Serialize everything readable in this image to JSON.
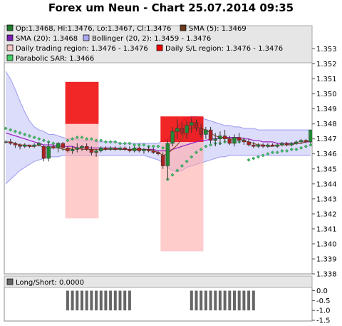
{
  "chart_data": [
    {
      "type": "candlestick",
      "title": "Forex um Neun - Chart 25.07.2014 09:35",
      "ylim": [
        1.338,
        1.3535
      ],
      "yticks": [
        "1.353",
        "1.352",
        "1.351",
        "1.350",
        "1.349",
        "1.348",
        "1.347",
        "1.346",
        "1.345",
        "1.344",
        "1.343",
        "1.342",
        "1.341",
        "1.340",
        "1.339",
        "1.338"
      ],
      "legend": [
        {
          "label": "Op:1.3468, Hi:1.3476, Lo:1.3467, Cl:1.3476",
          "color": "#1f7a2e"
        },
        {
          "label": "SMA (5): 1.3469",
          "color": "#6b3a1e"
        },
        {
          "label": "SMA (20): 1.3468",
          "color": "#7a1fb0"
        },
        {
          "label": "Bollinger (20, 2): 1.3459 - 1.3476",
          "color": "#a9a9f2"
        },
        {
          "label": "Daily trading region: 1.3476 - 1.3476",
          "color": "#f7c3c3"
        },
        {
          "label": "Daily S/L region: 1.3476 - 1.3476",
          "color": "#ee0000"
        },
        {
          "label": "Parabolic SAR: 1.3466",
          "color": "#44cc66"
        }
      ],
      "candles": [
        {
          "o": 1.3468,
          "h": 1.3469,
          "l": 1.3467,
          "c": 1.3468
        },
        {
          "o": 1.3468,
          "h": 1.347,
          "l": 1.3466,
          "c": 1.3467
        },
        {
          "o": 1.3467,
          "h": 1.3468,
          "l": 1.3464,
          "c": 1.3466
        },
        {
          "o": 1.3466,
          "h": 1.3467,
          "l": 1.3463,
          "c": 1.3465
        },
        {
          "o": 1.3465,
          "h": 1.3467,
          "l": 1.3464,
          "c": 1.3466
        },
        {
          "o": 1.3466,
          "h": 1.3466,
          "l": 1.3464,
          "c": 1.3465
        },
        {
          "o": 1.3465,
          "h": 1.3467,
          "l": 1.3464,
          "c": 1.3466
        },
        {
          "o": 1.3466,
          "h": 1.3468,
          "l": 1.3465,
          "c": 1.3467
        },
        {
          "o": 1.3465,
          "h": 1.3466,
          "l": 1.3455,
          "c": 1.3457
        },
        {
          "o": 1.3457,
          "h": 1.3468,
          "l": 1.3455,
          "c": 1.3465
        },
        {
          "o": 1.3465,
          "h": 1.3466,
          "l": 1.3463,
          "c": 1.3464
        },
        {
          "o": 1.3464,
          "h": 1.3468,
          "l": 1.3461,
          "c": 1.3467
        },
        {
          "o": 1.3467,
          "h": 1.3468,
          "l": 1.3462,
          "c": 1.3464
        },
        {
          "o": 1.3464,
          "h": 1.3465,
          "l": 1.3461,
          "c": 1.3462
        },
        {
          "o": 1.3462,
          "h": 1.3465,
          "l": 1.346,
          "c": 1.3463
        },
        {
          "o": 1.3463,
          "h": 1.3467,
          "l": 1.3461,
          "c": 1.3464
        },
        {
          "o": 1.3464,
          "h": 1.3466,
          "l": 1.3462,
          "c": 1.3465
        },
        {
          "o": 1.3465,
          "h": 1.3467,
          "l": 1.3462,
          "c": 1.3463
        },
        {
          "o": 1.3463,
          "h": 1.3465,
          "l": 1.3459,
          "c": 1.3461
        },
        {
          "o": 1.3461,
          "h": 1.3463,
          "l": 1.3458,
          "c": 1.3462
        },
        {
          "o": 1.3462,
          "h": 1.3465,
          "l": 1.3461,
          "c": 1.3464
        },
        {
          "o": 1.3464,
          "h": 1.3465,
          "l": 1.3462,
          "c": 1.3463
        },
        {
          "o": 1.3463,
          "h": 1.3465,
          "l": 1.3462,
          "c": 1.3464
        },
        {
          "o": 1.3464,
          "h": 1.3465,
          "l": 1.3462,
          "c": 1.3463
        },
        {
          "o": 1.3463,
          "h": 1.3465,
          "l": 1.3462,
          "c": 1.3464
        },
        {
          "o": 1.3464,
          "h": 1.3465,
          "l": 1.3462,
          "c": 1.3463
        },
        {
          "o": 1.3463,
          "h": 1.3465,
          "l": 1.3461,
          "c": 1.3462
        },
        {
          "o": 1.3462,
          "h": 1.3465,
          "l": 1.3461,
          "c": 1.3464
        },
        {
          "o": 1.3464,
          "h": 1.3465,
          "l": 1.3461,
          "c": 1.3462
        },
        {
          "o": 1.3462,
          "h": 1.3464,
          "l": 1.346,
          "c": 1.3463
        },
        {
          "o": 1.3463,
          "h": 1.3465,
          "l": 1.3461,
          "c": 1.3462
        },
        {
          "o": 1.3462,
          "h": 1.3464,
          "l": 1.346,
          "c": 1.3461
        },
        {
          "o": 1.3461,
          "h": 1.3462,
          "l": 1.3459,
          "c": 1.346
        },
        {
          "o": 1.3459,
          "h": 1.3461,
          "l": 1.345,
          "c": 1.3452
        },
        {
          "o": 1.3452,
          "h": 1.3469,
          "l": 1.3443,
          "c": 1.3467
        },
        {
          "o": 1.3467,
          "h": 1.3478,
          "l": 1.3465,
          "c": 1.3475
        },
        {
          "o": 1.3475,
          "h": 1.3483,
          "l": 1.347,
          "c": 1.3477
        },
        {
          "o": 1.3477,
          "h": 1.3481,
          "l": 1.3472,
          "c": 1.3474
        },
        {
          "o": 1.3474,
          "h": 1.3482,
          "l": 1.347,
          "c": 1.3479
        },
        {
          "o": 1.3479,
          "h": 1.3484,
          "l": 1.3474,
          "c": 1.3481
        },
        {
          "o": 1.3481,
          "h": 1.3483,
          "l": 1.3475,
          "c": 1.3477
        },
        {
          "o": 1.3477,
          "h": 1.348,
          "l": 1.3471,
          "c": 1.3473
        },
        {
          "o": 1.3473,
          "h": 1.3478,
          "l": 1.347,
          "c": 1.3476
        },
        {
          "o": 1.3476,
          "h": 1.3478,
          "l": 1.3467,
          "c": 1.3469
        },
        {
          "o": 1.3469,
          "h": 1.3474,
          "l": 1.3465,
          "c": 1.347
        },
        {
          "o": 1.347,
          "h": 1.3475,
          "l": 1.3466,
          "c": 1.3472
        },
        {
          "o": 1.3472,
          "h": 1.3476,
          "l": 1.3468,
          "c": 1.347
        },
        {
          "o": 1.347,
          "h": 1.3472,
          "l": 1.3466,
          "c": 1.3467
        },
        {
          "o": 1.3467,
          "h": 1.3473,
          "l": 1.3465,
          "c": 1.3471
        },
        {
          "o": 1.3471,
          "h": 1.3474,
          "l": 1.3467,
          "c": 1.3469
        },
        {
          "o": 1.3469,
          "h": 1.3471,
          "l": 1.3466,
          "c": 1.3468
        },
        {
          "o": 1.3468,
          "h": 1.347,
          "l": 1.3465,
          "c": 1.3466
        },
        {
          "o": 1.3466,
          "h": 1.3468,
          "l": 1.3464,
          "c": 1.3465
        },
        {
          "o": 1.3465,
          "h": 1.3467,
          "l": 1.3464,
          "c": 1.3466
        },
        {
          "o": 1.3466,
          "h": 1.3467,
          "l": 1.3464,
          "c": 1.3465
        },
        {
          "o": 1.3465,
          "h": 1.3467,
          "l": 1.3464,
          "c": 1.3466
        },
        {
          "o": 1.3466,
          "h": 1.3467,
          "l": 1.3465,
          "c": 1.3465
        },
        {
          "o": 1.3465,
          "h": 1.3467,
          "l": 1.3464,
          "c": 1.3466
        },
        {
          "o": 1.3466,
          "h": 1.3468,
          "l": 1.3465,
          "c": 1.3467
        },
        {
          "o": 1.3467,
          "h": 1.3468,
          "l": 1.3465,
          "c": 1.3466
        },
        {
          "o": 1.3466,
          "h": 1.3468,
          "l": 1.3465,
          "c": 1.3467
        },
        {
          "o": 1.3467,
          "h": 1.3469,
          "l": 1.3466,
          "c": 1.3468
        },
        {
          "o": 1.3468,
          "h": 1.347,
          "l": 1.3467,
          "c": 1.3469
        },
        {
          "o": 1.3469,
          "h": 1.347,
          "l": 1.3467,
          "c": 1.3468
        },
        {
          "o": 1.3468,
          "h": 1.3476,
          "l": 1.3467,
          "c": 1.3476
        }
      ],
      "sma5": [
        1.3468,
        1.3468,
        1.3467,
        1.3466,
        1.3466,
        1.3465,
        1.3465,
        1.3466,
        1.3464,
        1.3464,
        1.3464,
        1.3464,
        1.3463,
        1.3463,
        1.3464,
        1.3464,
        1.3463,
        1.3463,
        1.3463,
        1.3463,
        1.3463,
        1.3463,
        1.3463,
        1.3463,
        1.3463,
        1.3463,
        1.3463,
        1.3463,
        1.3463,
        1.3463,
        1.3463,
        1.3462,
        1.3461,
        1.3459,
        1.346,
        1.3463,
        1.3466,
        1.347,
        1.3476,
        1.3477,
        1.3478,
        1.3477,
        1.3476,
        1.3474,
        1.3472,
        1.3471,
        1.3471,
        1.347,
        1.347,
        1.347,
        1.3469,
        1.3468,
        1.3467,
        1.3466,
        1.3466,
        1.3465,
        1.3465,
        1.3466,
        1.3466,
        1.3466,
        1.3466,
        1.3467,
        1.3467,
        1.3468,
        1.3469
      ],
      "sma20": [
        1.3474,
        1.3473,
        1.3472,
        1.3471,
        1.347,
        1.3469,
        1.3468,
        1.3467,
        1.3466,
        1.3466,
        1.3466,
        1.3465,
        1.3465,
        1.3465,
        1.3465,
        1.3464,
        1.3464,
        1.3464,
        1.3464,
        1.3464,
        1.3464,
        1.3464,
        1.3464,
        1.3464,
        1.3463,
        1.3463,
        1.3463,
        1.3463,
        1.3463,
        1.3463,
        1.3463,
        1.3463,
        1.3462,
        1.3462,
        1.3462,
        1.3463,
        1.3464,
        1.3465,
        1.3466,
        1.3467,
        1.3468,
        1.3469,
        1.3469,
        1.347,
        1.347,
        1.3471,
        1.3471,
        1.3471,
        1.3471,
        1.3471,
        1.347,
        1.347,
        1.3469,
        1.3469,
        1.3468,
        1.3468,
        1.3468,
        1.3467,
        1.3467,
        1.3467,
        1.3467,
        1.3467,
        1.3467,
        1.3468,
        1.3468
      ],
      "bollinger_upper": [
        1.3515,
        1.351,
        1.3503,
        1.3495,
        1.3488,
        1.3482,
        1.3478,
        1.3476,
        1.3475,
        1.3473,
        1.3473,
        1.3472,
        1.3471,
        1.347,
        1.347,
        1.347,
        1.3469,
        1.3469,
        1.3469,
        1.3468,
        1.3468,
        1.3468,
        1.3468,
        1.3468,
        1.3467,
        1.3467,
        1.3467,
        1.3467,
        1.3467,
        1.3467,
        1.3467,
        1.3467,
        1.3467,
        1.3469,
        1.347,
        1.3474,
        1.3478,
        1.3482,
        1.3484,
        1.3485,
        1.3485,
        1.3484,
        1.3483,
        1.3482,
        1.3481,
        1.348,
        1.3479,
        1.3479,
        1.3478,
        1.3478,
        1.3477,
        1.3477,
        1.3477,
        1.3476,
        1.3476,
        1.3476,
        1.3476,
        1.3476,
        1.3476,
        1.3476,
        1.3476,
        1.3476,
        1.3476,
        1.3476,
        1.3476
      ],
      "bollinger_lower": [
        1.344,
        1.3443,
        1.3446,
        1.3449,
        1.3451,
        1.3453,
        1.3455,
        1.3456,
        1.3457,
        1.3458,
        1.3458,
        1.3458,
        1.3459,
        1.3459,
        1.3459,
        1.3459,
        1.3459,
        1.3459,
        1.3459,
        1.3459,
        1.3459,
        1.3459,
        1.3459,
        1.3459,
        1.3459,
        1.3459,
        1.3459,
        1.3459,
        1.3459,
        1.3459,
        1.3458,
        1.3457,
        1.3456,
        1.3454,
        1.3451,
        1.3449,
        1.3448,
        1.3449,
        1.3451,
        1.3452,
        1.3453,
        1.3454,
        1.3455,
        1.3456,
        1.3457,
        1.3458,
        1.3458,
        1.3459,
        1.3459,
        1.3459,
        1.3459,
        1.3459,
        1.3459,
        1.3459,
        1.3459,
        1.3459,
        1.3459,
        1.3459,
        1.3459,
        1.3459,
        1.3459,
        1.3459,
        1.3459,
        1.3459,
        1.3459
      ],
      "sar": [
        1.3477,
        1.3476,
        1.3475,
        1.3474,
        1.3473,
        1.3472,
        1.3471,
        1.347,
        1.3469,
        1.3468,
        1.3467,
        1.3466,
        1.3466,
        1.3469,
        1.347,
        1.3471,
        1.3471,
        1.347,
        1.347,
        1.3469,
        1.3469,
        1.3468,
        1.3468,
        1.3468,
        1.3467,
        1.3467,
        1.3467,
        1.3466,
        1.3466,
        1.3466,
        1.3465,
        1.3465,
        1.3465,
        1.3464,
        1.3443,
        1.3446,
        1.3449,
        1.3452,
        1.3455,
        1.3458,
        1.3461,
        1.3463,
        1.3465,
        1.3466,
        1.3467,
        1.3467,
        1.3468,
        1.3468,
        1.3468,
        1.3468,
        1.3469,
        1.3456,
        1.3457,
        1.3458,
        1.3459,
        1.346,
        1.3461,
        1.3461,
        1.3462,
        1.3462,
        1.3463,
        1.3463,
        1.3464,
        1.3465,
        1.3466
      ],
      "regions": [
        {
          "kind": "trading",
          "x0": 13,
          "x1": 19,
          "lo": 1.3417,
          "hi": 1.348
        },
        {
          "kind": "sl",
          "x0": 13,
          "x1": 19,
          "lo": 1.348,
          "hi": 1.3508
        },
        {
          "kind": "trading",
          "x0": 33,
          "x1": 41,
          "lo": 1.3395,
          "hi": 1.3468
        },
        {
          "kind": "sl",
          "x0": 33,
          "x1": 41,
          "lo": 1.3468,
          "hi": 1.3485
        }
      ]
    },
    {
      "type": "bar",
      "legend": [
        {
          "label": "Long/Short: 0.0000",
          "color": "#666666"
        }
      ],
      "ylim": [
        -1.5,
        0.2
      ],
      "yticks": [
        "0.0",
        "-0.5",
        "-1.0",
        "-1.5"
      ],
      "values": [
        0,
        0,
        0,
        0,
        0,
        0,
        0,
        0,
        0,
        0,
        0,
        0,
        0,
        -1,
        -1,
        -1,
        -1,
        -1,
        -1,
        -1,
        -1,
        -1,
        -1,
        -1,
        -1,
        -1,
        -1,
        0,
        0,
        0,
        0,
        0,
        0,
        0,
        0,
        0,
        0,
        0,
        0,
        -1,
        -1,
        -1,
        -1,
        -1,
        -1,
        -1,
        -1,
        -1,
        -1,
        -1,
        -1,
        -1,
        -1,
        0,
        0,
        0,
        0,
        0,
        0,
        0,
        0,
        0,
        0,
        0,
        0
      ]
    }
  ]
}
